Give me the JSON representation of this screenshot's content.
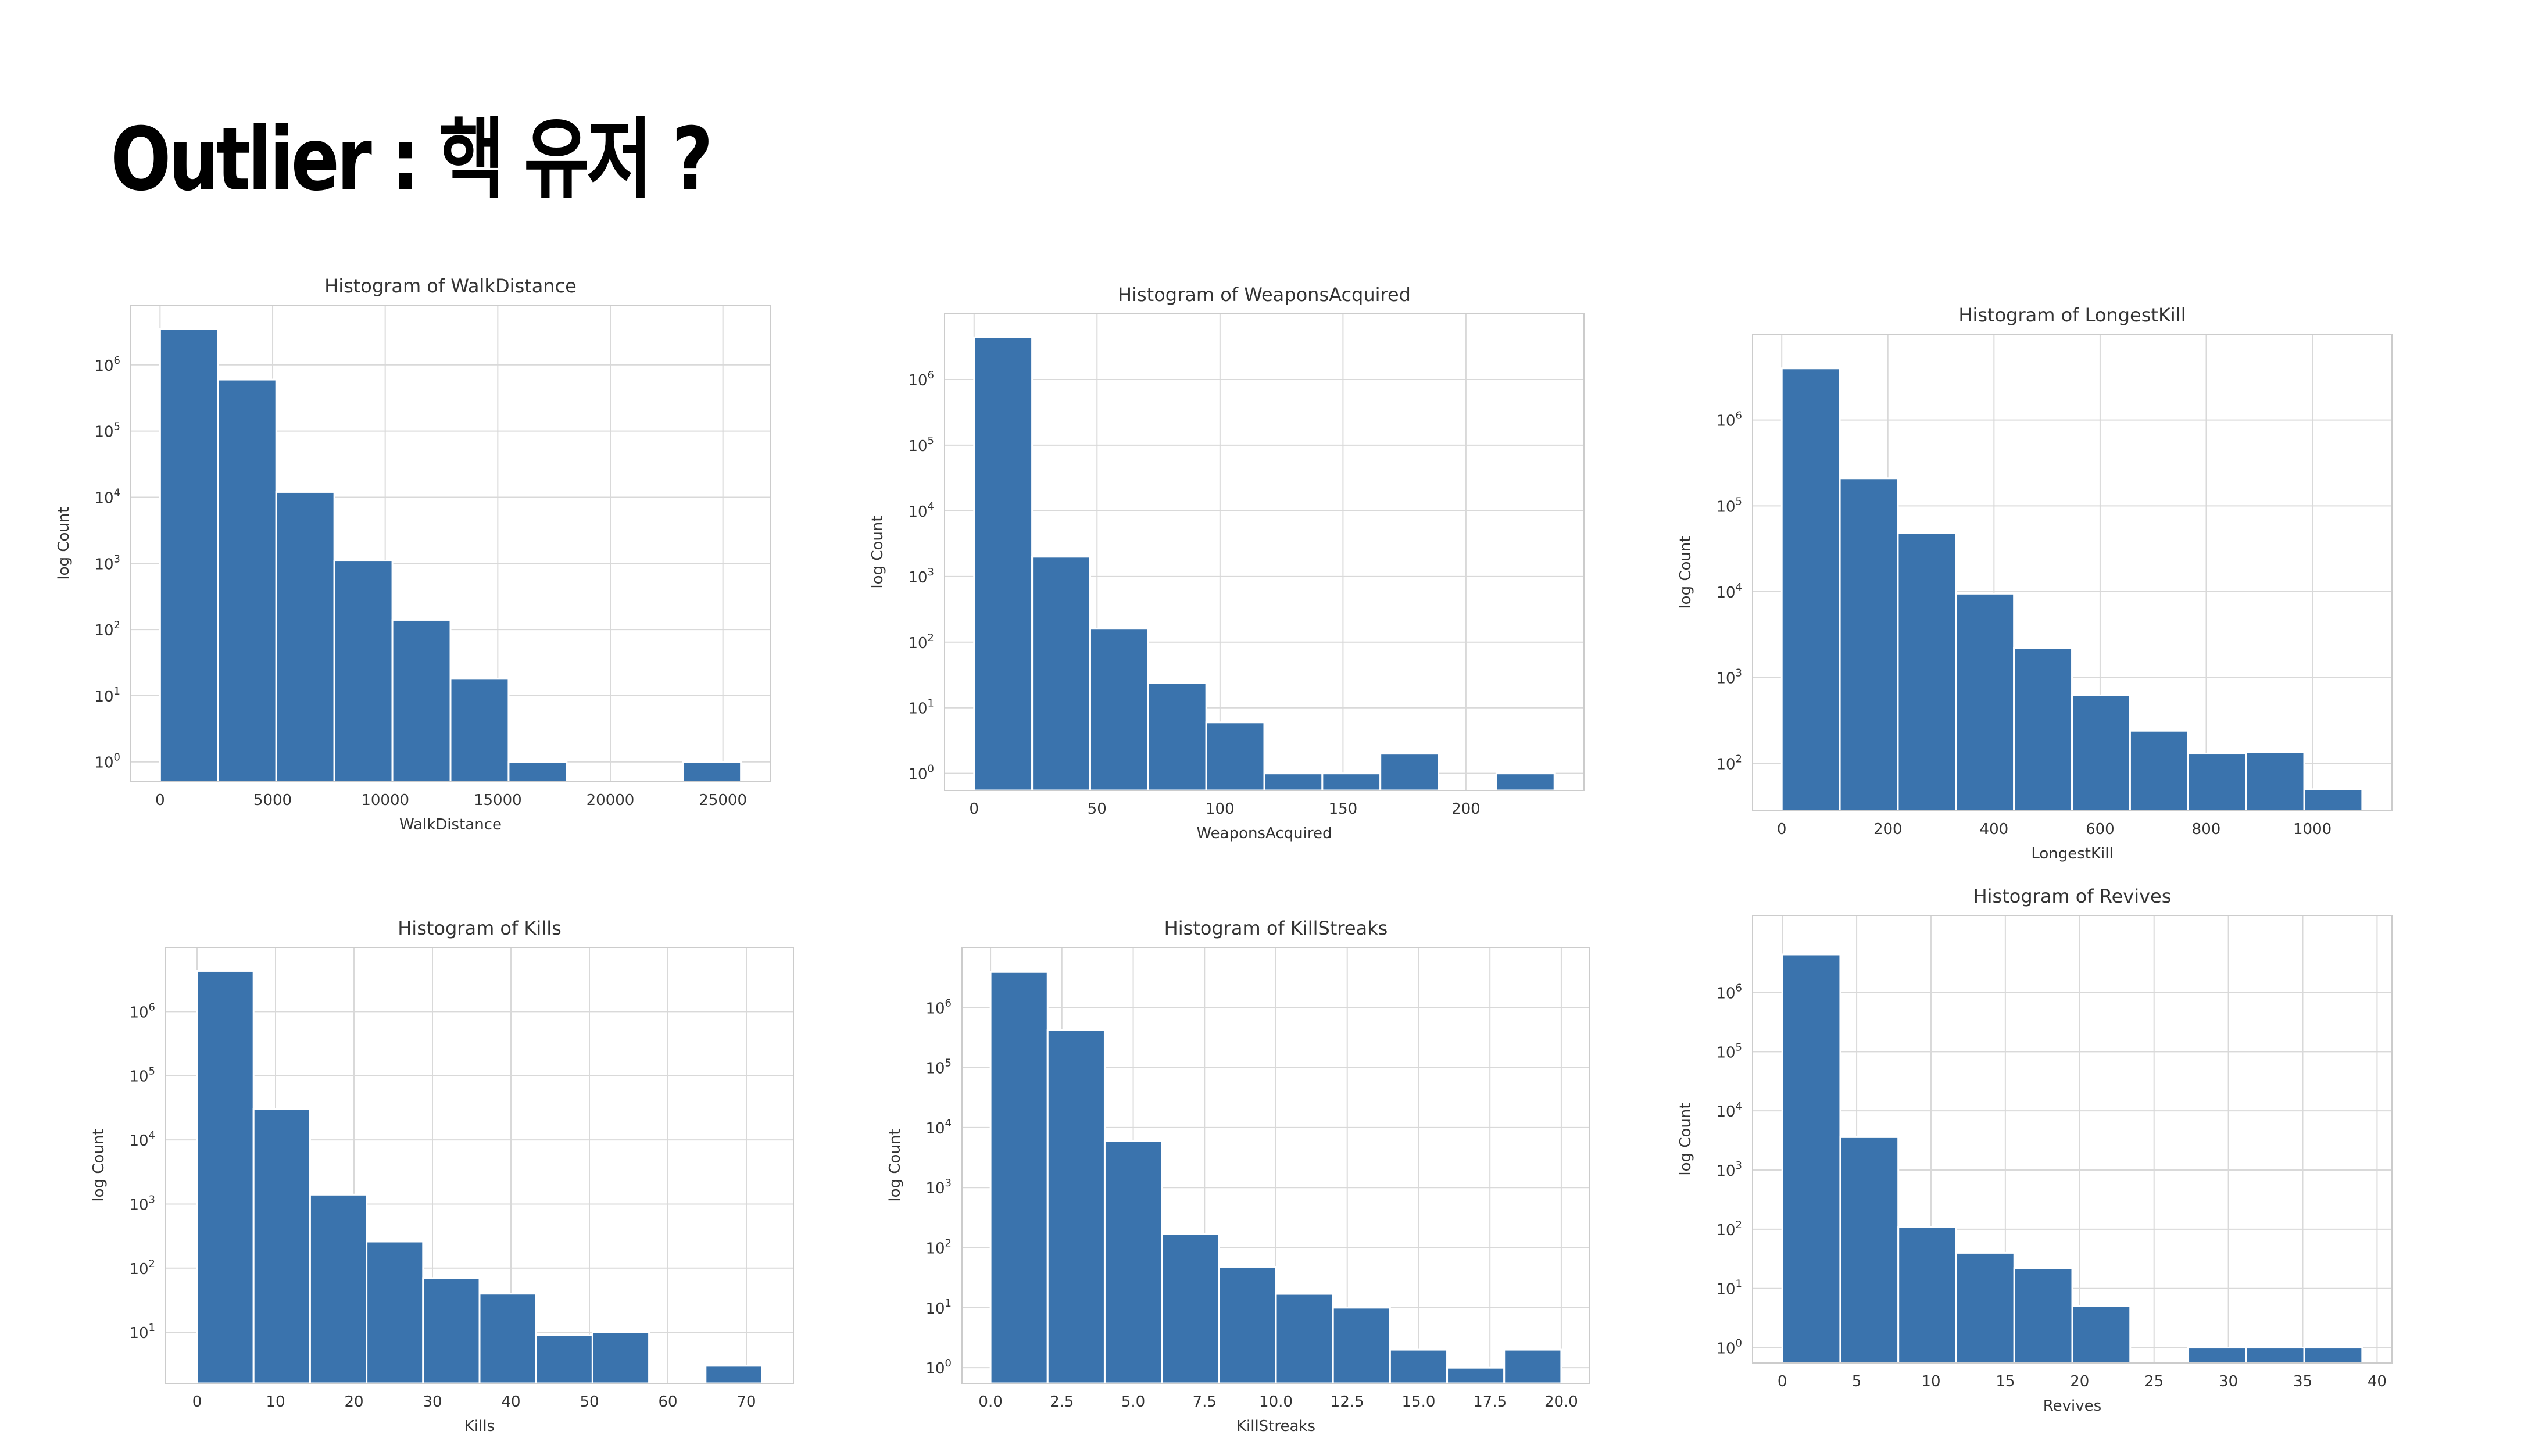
{
  "slide": {
    "title": "Outlier : 핵 유저 ?"
  },
  "colors": {
    "bar": "#3a73ad",
    "grid": "#d9d9d9",
    "frame": "#cccccc",
    "text": "#333333"
  },
  "chart_data": [
    {
      "type": "bar",
      "title": "Histogram of WalkDistance",
      "xlabel": "WalkDistance",
      "ylabel": "log Count",
      "yscale": "log",
      "grid": true,
      "bin_edges": [
        0,
        2580,
        5160,
        7740,
        10320,
        12900,
        15480,
        18060,
        20640,
        23220,
        25800
      ],
      "counts": [
        3500000,
        600000,
        12000,
        1100,
        140,
        18,
        1,
        0,
        0,
        1
      ],
      "xlim": [
        -1300,
        27100
      ],
      "ylim": [
        0.5,
        8000000
      ],
      "xticks": [
        0,
        5000,
        10000,
        15000,
        20000,
        25000
      ],
      "yticks": [
        1,
        10,
        100,
        1000,
        10000,
        100000,
        1000000
      ],
      "ytick_labels": [
        "10^0",
        "10^1",
        "10^2",
        "10^3",
        "10^4",
        "10^5",
        "10^6"
      ]
    },
    {
      "type": "bar",
      "title": "Histogram of WeaponsAcquired",
      "xlabel": "WeaponsAcquired",
      "ylabel": "log Count",
      "yscale": "log",
      "grid": true,
      "bin_edges": [
        0,
        23.6,
        47.2,
        70.8,
        94.4,
        118,
        141.6,
        165.2,
        188.8,
        212.4,
        236
      ],
      "counts": [
        4400000,
        2000,
        160,
        24,
        6,
        1,
        1,
        2,
        0,
        1
      ],
      "xlim": [
        -12,
        248
      ],
      "ylim": [
        0.55,
        10000000
      ],
      "xticks": [
        0,
        50,
        100,
        150,
        200
      ],
      "yticks": [
        1,
        10,
        100,
        1000,
        10000,
        100000,
        1000000
      ],
      "ytick_labels": [
        "10^0",
        "10^1",
        "10^2",
        "10^3",
        "10^4",
        "10^5",
        "10^6"
      ]
    },
    {
      "type": "bar",
      "title": "Histogram of LongestKill",
      "xlabel": "LongestKill",
      "ylabel": "log Count",
      "yscale": "log",
      "grid": true,
      "bin_edges": [
        0,
        109.4,
        218.8,
        328.2,
        437.6,
        547,
        656.4,
        765.8,
        875.2,
        984.6,
        1094
      ],
      "counts": [
        4000000,
        210000,
        48000,
        9500,
        2200,
        620,
        240,
        130,
        135,
        50
      ],
      "xlim": [
        -55,
        1150
      ],
      "ylim": [
        28,
        10000000
      ],
      "xticks": [
        0,
        200,
        400,
        600,
        800,
        1000
      ],
      "yticks": [
        100,
        1000,
        10000,
        100000,
        1000000
      ],
      "ytick_labels": [
        "10^2",
        "10^3",
        "10^4",
        "10^5",
        "10^6"
      ]
    },
    {
      "type": "bar",
      "title": "Histogram of Kills",
      "xlabel": "Kills",
      "ylabel": "log Count",
      "yscale": "log",
      "grid": true,
      "bin_edges": [
        0,
        7.2,
        14.4,
        21.6,
        28.8,
        36,
        43.2,
        50.4,
        57.6,
        64.8,
        72
      ],
      "counts": [
        4300000,
        30000,
        1400,
        260,
        70,
        40,
        9,
        10,
        0,
        3
      ],
      "xlim": [
        -4,
        76
      ],
      "ylim": [
        1.6,
        10000000
      ],
      "xticks": [
        0,
        10,
        20,
        30,
        40,
        50,
        60,
        70
      ],
      "yticks": [
        10,
        100,
        1000,
        10000,
        100000,
        1000000
      ],
      "ytick_labels": [
        "10^1",
        "10^2",
        "10^3",
        "10^4",
        "10^5",
        "10^6"
      ]
    },
    {
      "type": "bar",
      "title": "Histogram of KillStreaks",
      "xlabel": "KillStreaks",
      "ylabel": "log Count",
      "yscale": "log",
      "grid": true,
      "bin_edges": [
        0,
        2,
        4,
        6,
        8,
        10,
        12,
        14,
        16,
        18,
        20
      ],
      "counts": [
        3900000,
        420000,
        6000,
        170,
        48,
        17,
        10,
        2,
        1,
        2
      ],
      "xlim": [
        -1,
        21
      ],
      "ylim": [
        0.55,
        10000000
      ],
      "xticks": [
        0,
        2.5,
        5,
        7.5,
        10,
        12.5,
        15,
        17.5,
        20
      ],
      "xtick_labels": [
        "0.0",
        "2.5",
        "5.0",
        "7.5",
        "10.0",
        "12.5",
        "15.0",
        "17.5",
        "20.0"
      ],
      "yticks": [
        1,
        10,
        100,
        1000,
        10000,
        100000,
        1000000
      ],
      "ytick_labels": [
        "10^0",
        "10^1",
        "10^2",
        "10^3",
        "10^4",
        "10^5",
        "10^6"
      ]
    },
    {
      "type": "bar",
      "title": "Histogram of Revives",
      "xlabel": "Revives",
      "ylabel": "log Count",
      "yscale": "log",
      "grid": true,
      "bin_edges": [
        0,
        3.9,
        7.8,
        11.7,
        15.6,
        19.5,
        23.4,
        27.3,
        31.2,
        35.1,
        39
      ],
      "counts": [
        4400000,
        3600,
        110,
        40,
        22,
        5,
        0,
        1,
        1,
        1
      ],
      "xlim": [
        -2,
        41
      ],
      "ylim": [
        0.55,
        20000000
      ],
      "xticks": [
        0,
        5,
        10,
        15,
        20,
        25,
        30,
        35,
        40
      ],
      "yticks": [
        1,
        10,
        100,
        1000,
        10000,
        100000,
        1000000
      ],
      "ytick_labels": [
        "10^0",
        "10^1",
        "10^2",
        "10^3",
        "10^4",
        "10^5",
        "10^6"
      ]
    }
  ]
}
